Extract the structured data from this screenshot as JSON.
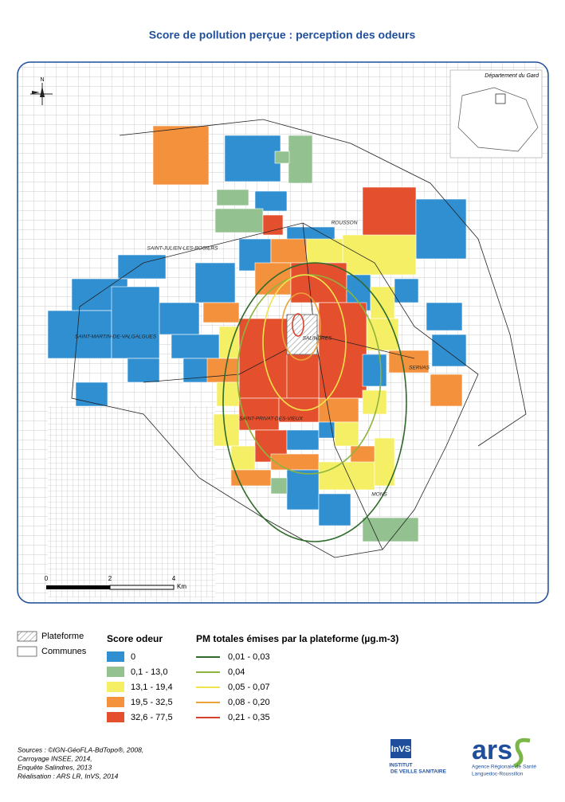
{
  "title": "Score de pollution perçue : perception des odeurs",
  "map": {
    "inset_label": "Département du Gard",
    "north": "N",
    "places": [
      "ROUSSON",
      "SAINT-JULIEN-LES-ROSIERS",
      "SAINT-MARTIN-DE-VALGALGUES",
      "SALINDRES",
      "SERVAS",
      "SAINT-PRIVAT-DES-VIEUX",
      "MONS"
    ],
    "scale_bar": {
      "ticks": [
        0,
        2,
        4
      ],
      "unit": "Km"
    }
  },
  "legend": {
    "plateforme": "Plateforme",
    "communes": "Communes",
    "score": {
      "title": "Score odeur",
      "classes": [
        {
          "label": "0",
          "color": "#2f8fd1"
        },
        {
          "label": "0,1 - 13,0",
          "color": "#93c190"
        },
        {
          "label": "13,1 - 19,4",
          "color": "#f5ef66"
        },
        {
          "label": "19,5 - 32,5",
          "color": "#f4913c"
        },
        {
          "label": "32,6 - 77,5",
          "color": "#e4502e"
        }
      ]
    },
    "pm": {
      "title": "PM totales émises par la plateforme (µg.m-3)",
      "classes": [
        {
          "label": "0,01 - 0,03",
          "color": "#2f6b2a"
        },
        {
          "label": "0,04",
          "color": "#8db43c"
        },
        {
          "label": "0,05 - 0,07",
          "color": "#f1e34c"
        },
        {
          "label": "0,08 - 0,20",
          "color": "#eaa23a"
        },
        {
          "label": "0,21 - 0,35",
          "color": "#d8412b"
        }
      ]
    }
  },
  "sources": [
    "Sources : ©IGN-GéoFLA-BdTopo®, 2008,",
    "Carroyage INSEE, 2014,",
    "Enquête Salindres, 2013",
    "Réalisation : ARS LR, InVS, 2014"
  ],
  "logos": {
    "invs": {
      "abbr": "InVS",
      "name": [
        "INSTITUT",
        "DE VEILLE SANITAIRE"
      ]
    },
    "ars": {
      "abbr": "ars",
      "name": "Agence Régionale de Santé",
      "region": "Languedoc-Roussillon"
    }
  }
}
